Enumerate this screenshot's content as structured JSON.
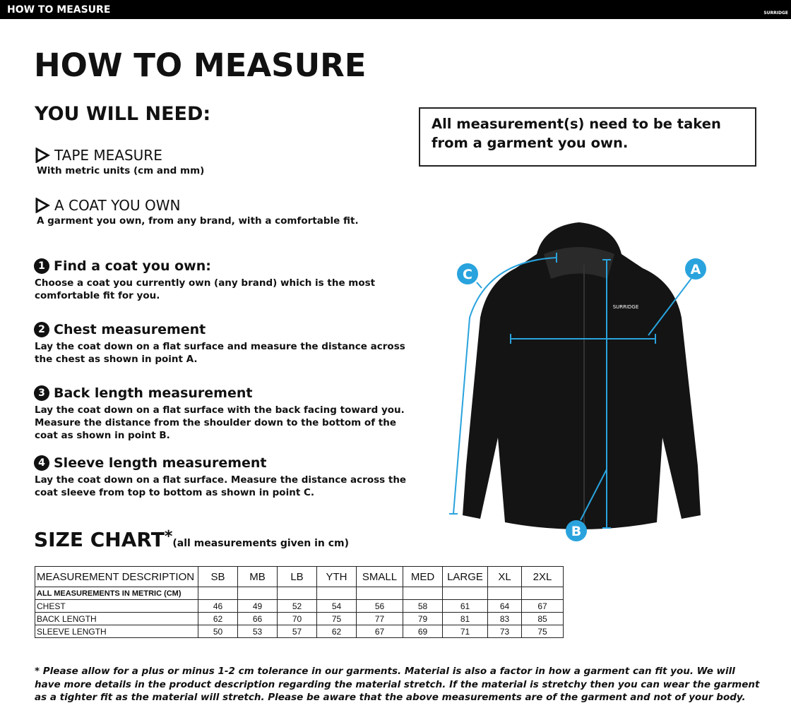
{
  "header": {
    "bar_title": "HOW TO MEASURE",
    "logo": "SURRIDGE"
  },
  "title": "HOW TO MEASURE",
  "you_will_need": {
    "heading": "YOU WILL NEED:",
    "items": [
      {
        "label": "TAPE MEASURE",
        "description": "With metric units (cm and mm)"
      },
      {
        "label": "A COAT YOU OWN",
        "description": "A garment you own, from any brand, with a comfortable fit."
      }
    ]
  },
  "note": "All measurement(s) need to be taken from a garment you own.",
  "steps": [
    {
      "number": "1",
      "title": "Find a coat you own:",
      "description": "Choose a coat you currently own (any brand) which is the most comfortable fit for you."
    },
    {
      "number": "2",
      "title": "Chest measurement",
      "description": "Lay the coat down on a flat surface and measure the distance across the chest as shown in point A."
    },
    {
      "number": "3",
      "title": "Back length measurement",
      "description": "Lay the coat down on a flat surface with the back facing toward you. Measure the distance from the shoulder down to the bottom of the coat as shown in point B."
    },
    {
      "number": "4",
      "title": "Sleeve length measurement",
      "description": "Lay the coat down on a flat surface. Measure the distance across the coat sleeve from top to bottom as shown in point C."
    }
  ],
  "diagram": {
    "brand": "SURRIDGE",
    "points": [
      "A",
      "B",
      "C"
    ]
  },
  "size_chart": {
    "title": "SIZE CHART",
    "asterisk": "*",
    "subtitle": "(all measurements given in cm)",
    "table": {
      "columns": [
        "MEASUREMENT DESCRIPTION",
        "SB",
        "MB",
        "LB",
        "YTH",
        "SMALL",
        "MED",
        "LARGE",
        "XL",
        "2XL"
      ],
      "subheader": "ALL MEASUREMENTS IN METRIC (CM)",
      "rows": [
        [
          "CHEST",
          46,
          49,
          52,
          54,
          56,
          58,
          61,
          64,
          67
        ],
        [
          "BACK LENGTH",
          62,
          66,
          70,
          75,
          77,
          79,
          81,
          83,
          85
        ],
        [
          "SLEEVE LENGTH",
          50,
          53,
          57,
          62,
          67,
          69,
          71,
          73,
          75
        ]
      ]
    }
  },
  "footnote": "* Please allow for a plus or minus 1-2 cm tolerance in our garments. Material is also a factor in how a garment can fit you. We will have more details in the product description regarding the material stretch.  If the material is stretchy then you can wear the garment as a tighter fit as the material will stretch.  Please be aware that the above measurements are of the garment and not of your body."
}
